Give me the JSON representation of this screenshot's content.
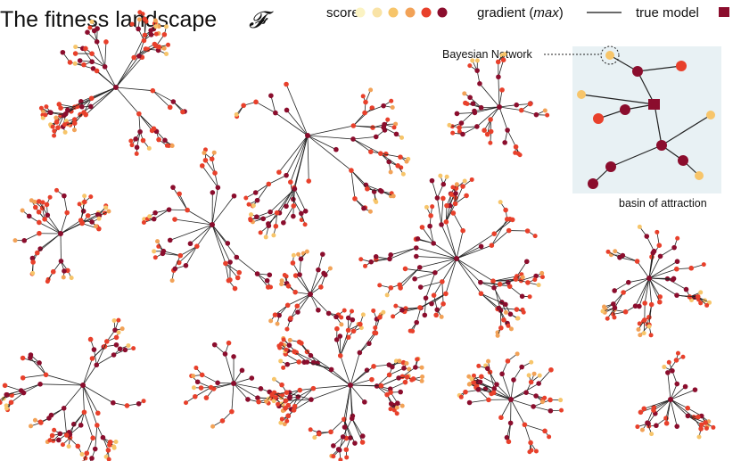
{
  "title": {
    "text": "The fitness landscape",
    "symbol": "𝓕"
  },
  "legend": {
    "score_label": "score",
    "score_colors": [
      "#fbf3c3",
      "#f9e3a6",
      "#f7c56a",
      "#f2a257",
      "#e8402b",
      "#8b0d2d"
    ],
    "gradient_label_prefix": "gradient (",
    "gradient_label_italic": "max",
    "gradient_label_suffix": ")",
    "true_model_label": "true model",
    "true_model_color": "#8b0d2d"
  },
  "inset": {
    "bn_label": "Bayesian Network",
    "basin_label": "basin of attraction",
    "background": "#e8f1f4"
  },
  "colors": {
    "node_light": "#f7c56a",
    "node_mid": "#e8402b",
    "node_dark": "#8b0d2d",
    "edge": "#222222"
  }
}
